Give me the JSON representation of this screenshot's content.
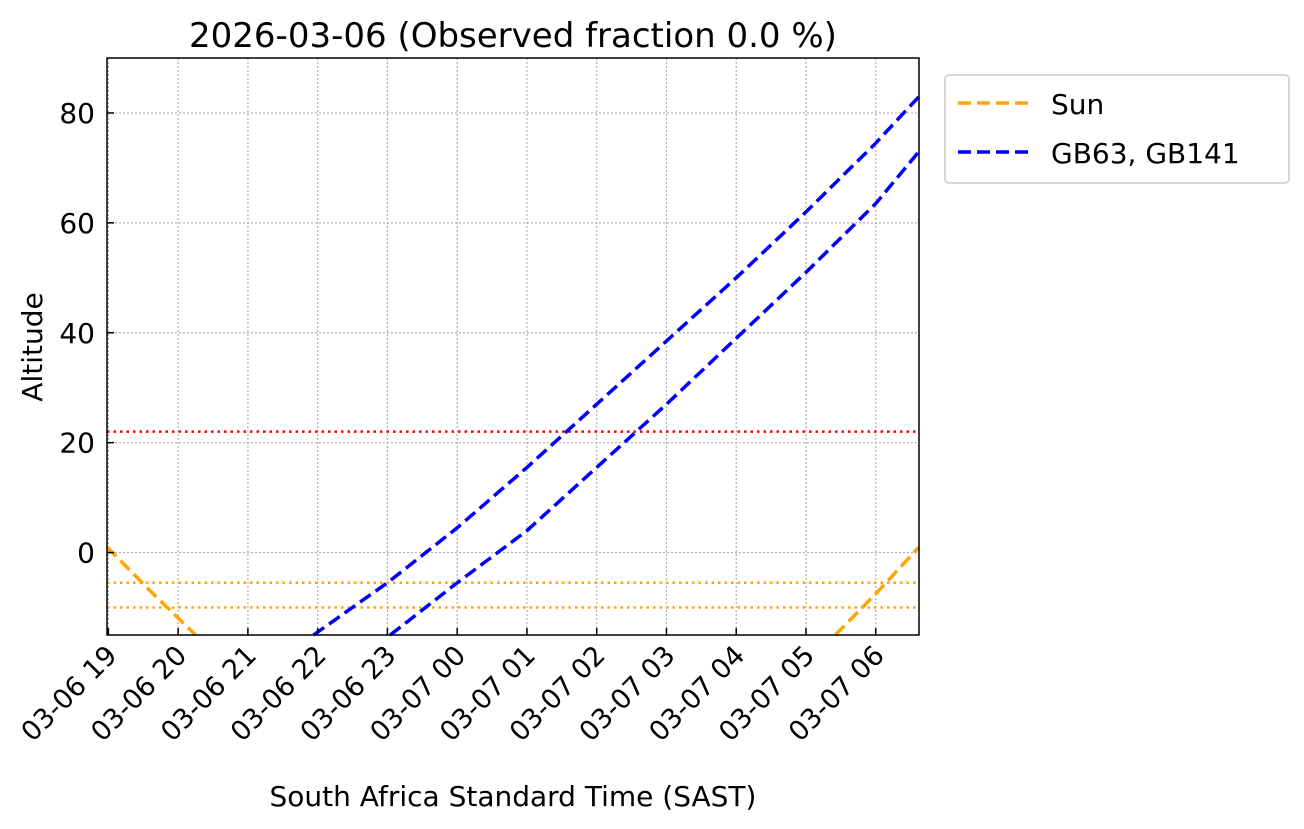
{
  "chart_data": {
    "type": "line",
    "title": "2026-03-06 (Observed fraction 0.0 %)",
    "xlabel": "South Africa Standard Time (SAST)",
    "ylabel": "Altitude",
    "x_units": "hours since 2026-03-06 00:00 SAST",
    "xlim": [
      18.98,
      30.62
    ],
    "ylim": [
      -15,
      90
    ],
    "grid": true,
    "legend_placement": "outside-top-right",
    "xticks": [
      19,
      20,
      21,
      22,
      23,
      24,
      25,
      26,
      27,
      28,
      29,
      30
    ],
    "xtick_labels": [
      "03-06 19",
      "03-06 20",
      "03-06 21",
      "03-06 22",
      "03-06 23",
      "03-07 00",
      "03-07 01",
      "03-07 02",
      "03-07 03",
      "03-07 04",
      "03-07 05",
      "03-07 06"
    ],
    "yticks": [
      0,
      20,
      40,
      60,
      80
    ],
    "ytick_labels": [
      "0",
      "20",
      "40",
      "60",
      "80"
    ],
    "series": [
      {
        "name": "Sun",
        "legend": "Sun",
        "color": "#ffa500",
        "style": "dashed",
        "segments": [
          {
            "x": [
              18.98,
              19.6,
              20.25
            ],
            "y": [
              1,
              -7,
              -15
            ]
          },
          {
            "x": [
              29.42,
              30.0,
              30.62
            ],
            "y": [
              -15,
              -7.5,
              1
            ]
          }
        ]
      },
      {
        "name": "GB63",
        "legend": "GB63, GB141",
        "color": "#0000ff",
        "style": "dashed",
        "segments": [
          {
            "x": [
              21.94,
              23,
              24,
              25,
              26,
              27,
              28,
              29,
              30,
              30.62
            ],
            "y": [
              -15,
              -5.5,
              4.5,
              15.5,
              27,
              38.5,
              50,
              62,
              74.5,
              83
            ]
          }
        ]
      },
      {
        "name": "GB141",
        "legend": null,
        "color": "#0000ff",
        "style": "dashed",
        "segments": [
          {
            "x": [
              23.04,
              24,
              25,
              26,
              27,
              28,
              29,
              30,
              30.62
            ],
            "y": [
              -15,
              -5.5,
              4,
              15.5,
              27,
              39,
              51,
              63.5,
              73
            ]
          }
        ]
      }
    ],
    "hlines": [
      {
        "y": 22,
        "color": "#ff0000",
        "style": "dotted"
      },
      {
        "y": -5.5,
        "color": "#ffa500",
        "style": "dotted"
      },
      {
        "y": -10,
        "color": "#ffa500",
        "style": "dotted"
      }
    ]
  }
}
